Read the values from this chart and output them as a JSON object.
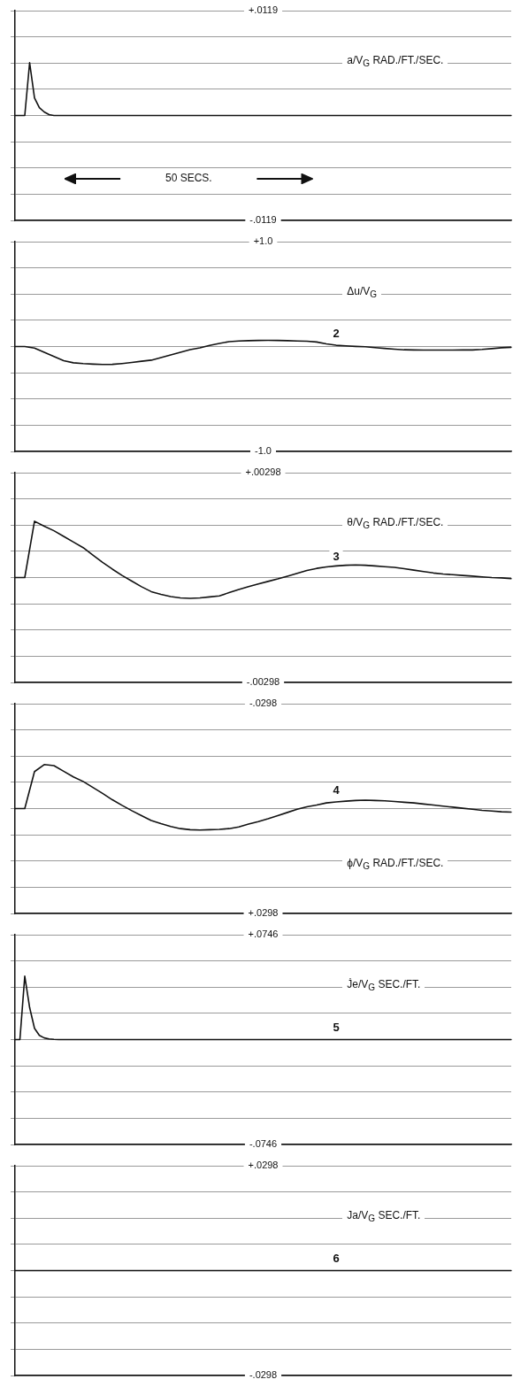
{
  "chart_data": [
    {
      "type": "line",
      "ylabel": "a/V$_{G}$ RAD./FT./SEC.",
      "color": "#111111",
      "grid": "y",
      "tick_labels": "y",
      "categories": [
        null,
        null,
        null,
        null,
        null,
        null,
        null,
        null,
        null,
        null,
        null,
        null,
        null,
        null,
        null,
        null,
        null,
        null,
        null,
        null,
        null,
        null,
        null,
        null,
        null,
        null,
        null,
        null,
        null,
        null,
        null,
        null,
        null,
        null,
        null,
        null,
        null,
        null,
        null,
        null,
        null,
        null,
        null,
        null,
        null,
        null,
        null,
        null,
        null,
        null,
        null,
        null,
        null,
        null,
        null,
        null,
        null,
        null,
        null,
        null,
        null,
        null,
        null,
        null,
        null,
        null,
        null,
        null,
        null,
        null,
        null,
        null,
        null,
        null,
        null,
        null,
        null,
        null,
        null,
        null,
        null,
        null,
        null,
        null,
        null,
        null,
        null,
        null,
        null,
        null,
        null,
        null,
        null,
        null,
        null,
        null,
        null,
        null,
        null,
        null,
        null,
        null,
        null
      ],
      "values": [
        0,
        0,
        0,
        0.006,
        0.002,
        0.0009,
        0.0004,
        0.0001,
        0,
        0,
        0,
        0,
        0,
        0,
        0,
        0,
        0,
        0,
        0,
        0,
        0,
        0,
        0,
        0,
        0,
        0,
        0,
        0,
        0,
        0,
        0,
        0,
        0,
        0,
        0,
        0,
        0,
        0,
        0,
        0,
        0,
        0,
        0,
        0,
        0,
        0,
        0,
        0,
        0,
        0,
        0,
        0,
        0,
        0,
        0,
        0,
        0,
        0,
        0,
        0,
        0,
        0,
        0,
        0,
        0,
        0,
        0,
        0,
        0,
        0,
        0,
        0,
        0,
        0,
        0,
        0,
        0,
        0,
        0,
        0,
        0,
        0,
        0,
        0,
        0,
        0,
        0,
        0,
        0,
        0,
        0,
        0,
        0,
        0,
        0,
        0,
        0,
        0,
        0,
        0,
        0,
        0,
        0
      ],
      "ylim": [
        -0.0119,
        0.0119
      ],
      "yticks": [
        {
          "value": -0.0119,
          "label": "-.0119"
        },
        {
          "value": -0.008925,
          "label": null
        },
        {
          "value": -0.00595,
          "label": null
        },
        {
          "value": -0.002975,
          "label": null
        },
        {
          "value": 0,
          "label": null
        },
        {
          "value": 0.002975,
          "label": null
        },
        {
          "value": 0.00595,
          "label": null
        },
        {
          "value": 0.008925,
          "label": null
        },
        {
          "value": 0.0119,
          "label": "+.0119"
        }
      ],
      "annotations": [
        "50 SECS."
      ]
    },
    {
      "type": "line",
      "ylabel": "Δu/V$_{G}$",
      "color": "#111111",
      "grid": "y",
      "tick_labels": "y",
      "categories": [
        null,
        null,
        null,
        null,
        null,
        null,
        null,
        null,
        null,
        null,
        null,
        null,
        null,
        null,
        null,
        null,
        null,
        null,
        null,
        null,
        null,
        null,
        null,
        null,
        null,
        null,
        null,
        null,
        null,
        null,
        null,
        null,
        null,
        null,
        null,
        null,
        null,
        null,
        null,
        null,
        null,
        null,
        null,
        null,
        null,
        null,
        null,
        null,
        null,
        null,
        null,
        null
      ],
      "values": [
        0,
        0,
        -0.015,
        -0.055,
        -0.095,
        -0.135,
        -0.155,
        -0.163,
        -0.168,
        -0.171,
        -0.17,
        -0.162,
        -0.152,
        -0.14,
        -0.13,
        -0.105,
        -0.08,
        -0.055,
        -0.03,
        -0.012,
        0.01,
        0.03,
        0.047,
        0.053,
        0.056,
        0.058,
        0.059,
        0.058,
        0.056,
        0.053,
        0.05,
        0.043,
        0.025,
        0.012,
        0.006,
        0.001,
        -0.002,
        -0.01,
        -0.018,
        -0.025,
        -0.031,
        -0.033,
        -0.034,
        -0.034,
        -0.034,
        -0.034,
        -0.033,
        -0.033,
        -0.028,
        -0.02,
        -0.012,
        -0.007
      ],
      "ylim": [
        -1.0,
        1.0
      ],
      "yticks": [
        {
          "value": -1.0,
          "label": "-1.0"
        },
        {
          "value": -0.75,
          "label": null
        },
        {
          "value": -0.5,
          "label": null
        },
        {
          "value": -0.25,
          "label": null
        },
        {
          "value": 0,
          "label": null
        },
        {
          "value": 0.25,
          "label": null
        },
        {
          "value": 0.5,
          "label": null
        },
        {
          "value": 0.75,
          "label": null
        },
        {
          "value": 1.0,
          "label": "+1.0"
        }
      ],
      "annotations": [
        {
          "text": "2",
          "y": 0.01
        }
      ]
    },
    {
      "type": "line",
      "ylabel": "θ/V$_{G}$ RAD./FT./SEC.",
      "color": "#111111",
      "grid": "y",
      "tick_labels": "y",
      "categories": [
        null,
        null,
        null,
        null,
        null,
        null,
        null,
        null,
        null,
        null,
        null,
        null,
        null,
        null,
        null,
        null,
        null,
        null,
        null,
        null,
        null,
        null,
        null,
        null,
        null,
        null,
        null,
        null,
        null,
        null,
        null,
        null,
        null,
        null,
        null,
        null,
        null,
        null,
        null,
        null,
        null,
        null,
        null,
        null,
        null,
        null,
        null,
        null,
        null,
        null,
        null,
        null
      ],
      "values": [
        0,
        0,
        0.0016,
        0.00146,
        0.00133,
        0.00117,
        0.00101,
        0.00085,
        0.00064,
        0.00043,
        0.00024,
        6e-05,
        -0.0001,
        -0.00026,
        -0.0004,
        -0.00048,
        -0.00054,
        -0.00058,
        -0.00059,
        -0.00058,
        -0.00055,
        -0.00052,
        -0.00043,
        -0.00034,
        -0.00026,
        -0.00018,
        -0.00011,
        -4e-05,
        4e-05,
        0.00012,
        0.0002,
        0.00026,
        0.0003,
        0.00033,
        0.00035,
        0.00036,
        0.00035,
        0.00033,
        0.00031,
        0.00029,
        0.00025,
        0.00021,
        0.00017,
        0.00013,
        0.0001,
        8e-05,
        6e-05,
        4e-05,
        2e-05,
        0,
        -1e-05,
        -3e-05
      ],
      "ylim": [
        -0.00298,
        0.00298
      ],
      "yticks": [
        {
          "value": -0.00298,
          "label": "-.00298"
        },
        {
          "value": -0.002235,
          "label": null
        },
        {
          "value": -0.00149,
          "label": null
        },
        {
          "value": -0.000745,
          "label": null
        },
        {
          "value": 0,
          "label": null
        },
        {
          "value": 0.000745,
          "label": null
        },
        {
          "value": 0.00149,
          "label": null
        },
        {
          "value": 0.002235,
          "label": null
        },
        {
          "value": 0.00298,
          "label": "+.00298"
        }
      ],
      "annotations": [
        {
          "text": "3",
          "y": 0.00026
        }
      ]
    },
    {
      "type": "line",
      "ylabel": "ϕ/V$_{G}$ RAD./FT./SEC.",
      "color": "#111111",
      "grid": "y",
      "tick_labels": "y",
      "categories": [
        null,
        null,
        null,
        null,
        null,
        null,
        null,
        null,
        null,
        null,
        null,
        null,
        null,
        null,
        null,
        null,
        null,
        null,
        null,
        null,
        null,
        null,
        null,
        null,
        null,
        null,
        null,
        null,
        null,
        null,
        null,
        null,
        null,
        null,
        null,
        null,
        null,
        null,
        null,
        null,
        null,
        null,
        null,
        null,
        null,
        null,
        null,
        null,
        null,
        null,
        null,
        null
      ],
      "values": [
        0,
        0,
        -0.0105,
        -0.0125,
        -0.0122,
        -0.0106,
        -0.009,
        -0.0077,
        -0.006,
        -0.0043,
        -0.0025,
        -0.0009,
        0.0006,
        0.002,
        0.0034,
        0.0043,
        0.0051,
        0.0057,
        0.006,
        0.0061,
        0.006,
        0.0059,
        0.0057,
        0.0052,
        0.0044,
        0.0037,
        0.0029,
        0.002,
        0.0011,
        0.0002,
        -0.0005,
        -0.001,
        -0.0016,
        -0.0019,
        -0.0021,
        -0.0023,
        -0.0024,
        -0.0023,
        -0.0022,
        -0.002,
        -0.0018,
        -0.0016,
        -0.0013,
        -0.001,
        -0.0007,
        -0.0004,
        -0.0001,
        0.0002,
        0.0005,
        0.0007,
        0.0009,
        0.001
      ],
      "ylim": [
        0.0298,
        -0.0298
      ],
      "yticks": [
        {
          "value": -0.0298,
          "label": "-.0298"
        },
        {
          "value": -0.02235,
          "label": null
        },
        {
          "value": -0.0149,
          "label": null
        },
        {
          "value": -0.00745,
          "label": null
        },
        {
          "value": 0,
          "label": null
        },
        {
          "value": 0.00745,
          "label": null
        },
        {
          "value": 0.0149,
          "label": null
        },
        {
          "value": 0.02235,
          "label": null
        },
        {
          "value": 0.0298,
          "label": "+.0298"
        }
      ],
      "annotations": [
        {
          "text": "4",
          "y": -0.0017
        }
      ]
    },
    {
      "type": "line",
      "ylabel": "J̇e/V$_{G}$ SEC./FT.",
      "color": "#111111",
      "grid": "y",
      "tick_labels": "y",
      "categories": [
        null,
        null,
        null,
        null,
        null,
        null,
        null,
        null,
        null,
        null,
        null,
        null,
        null,
        null,
        null,
        null,
        null,
        null,
        null,
        null,
        null,
        null,
        null,
        null,
        null,
        null,
        null,
        null,
        null,
        null,
        null,
        null,
        null,
        null,
        null,
        null,
        null,
        null,
        null,
        null,
        null,
        null,
        null,
        null,
        null,
        null,
        null,
        null,
        null,
        null,
        null,
        null,
        null,
        null,
        null,
        null,
        null,
        null,
        null,
        null,
        null,
        null,
        null,
        null,
        null,
        null,
        null,
        null,
        null,
        null,
        null,
        null,
        null,
        null,
        null,
        null,
        null,
        null,
        null,
        null,
        null,
        null,
        null,
        null,
        null,
        null,
        null,
        null,
        null,
        null,
        null,
        null,
        null,
        null,
        null,
        null,
        null,
        null,
        null,
        null,
        null,
        null,
        null
      ],
      "values": [
        0,
        0,
        0.0451,
        0.0228,
        0.008,
        0.003,
        0.0012,
        0.0005,
        0.0002,
        0,
        0,
        0,
        0,
        0,
        0,
        0,
        0,
        0,
        0,
        0,
        0,
        0,
        0,
        0,
        0,
        0,
        0,
        0,
        0,
        0,
        0,
        0,
        0,
        0,
        0,
        0,
        0,
        0,
        0,
        0,
        0,
        0,
        0,
        0,
        0,
        0,
        0,
        0,
        0,
        0,
        0,
        0,
        0,
        0,
        0,
        0,
        0,
        0,
        0,
        0,
        0,
        0,
        0,
        0,
        0,
        0,
        0,
        0,
        0,
        0,
        0,
        0,
        0,
        0,
        0,
        0,
        0,
        0,
        0,
        0,
        0,
        0,
        0,
        0,
        0,
        0,
        0,
        0,
        0,
        0,
        0,
        0,
        0,
        0,
        0,
        0,
        0,
        0,
        0,
        0,
        0,
        0,
        0
      ],
      "ylim": [
        -0.0746,
        0.0746
      ],
      "yticks": [
        {
          "value": -0.0746,
          "label": "-.0746"
        },
        {
          "value": -0.05595,
          "label": null
        },
        {
          "value": -0.0373,
          "label": null
        },
        {
          "value": -0.01865,
          "label": null
        },
        {
          "value": 0,
          "label": null
        },
        {
          "value": 0.01865,
          "label": null
        },
        {
          "value": 0.0373,
          "label": null
        },
        {
          "value": 0.05595,
          "label": null
        },
        {
          "value": 0.0746,
          "label": "+.0746"
        }
      ],
      "annotations": [
        {
          "text": "5",
          "y": 0
        }
      ]
    },
    {
      "type": "line",
      "ylabel": "Ja/V$_{G}$ SEC./FT.",
      "color": "#111111",
      "grid": "y",
      "tick_labels": "y",
      "categories": [
        null,
        null,
        null,
        null,
        null,
        null,
        null,
        null,
        null,
        null,
        null,
        null,
        null,
        null,
        null,
        null,
        null,
        null,
        null,
        null,
        null,
        null,
        null,
        null,
        null,
        null,
        null,
        null,
        null,
        null,
        null,
        null,
        null,
        null,
        null,
        null,
        null,
        null,
        null,
        null,
        null,
        null,
        null,
        null,
        null,
        null,
        null,
        null,
        null,
        null,
        null,
        null
      ],
      "values": [
        0,
        0,
        0,
        0,
        0,
        0,
        0,
        0,
        0,
        0,
        0,
        0,
        0,
        0,
        0,
        0,
        0,
        0,
        0,
        0,
        0,
        0,
        0,
        0,
        0,
        0,
        0,
        0,
        0,
        0,
        0,
        0,
        0,
        0,
        0,
        0,
        0,
        0,
        0,
        0,
        0,
        0,
        0,
        0,
        0,
        0,
        0,
        0,
        0,
        0,
        0,
        0
      ],
      "ylim": [
        -0.0298,
        0.0298
      ],
      "yticks": [
        {
          "value": -0.0298,
          "label": "-.0298"
        },
        {
          "value": -0.02235,
          "label": null
        },
        {
          "value": -0.0149,
          "label": null
        },
        {
          "value": -0.00745,
          "label": null
        },
        {
          "value": 0,
          "label": null
        },
        {
          "value": 0.00745,
          "label": null
        },
        {
          "value": 0.0149,
          "label": null
        },
        {
          "value": 0.02235,
          "label": null
        },
        {
          "value": 0.0298,
          "label": "+.0298"
        }
      ],
      "annotations": [
        {
          "text": "6",
          "y": 0
        }
      ]
    }
  ]
}
